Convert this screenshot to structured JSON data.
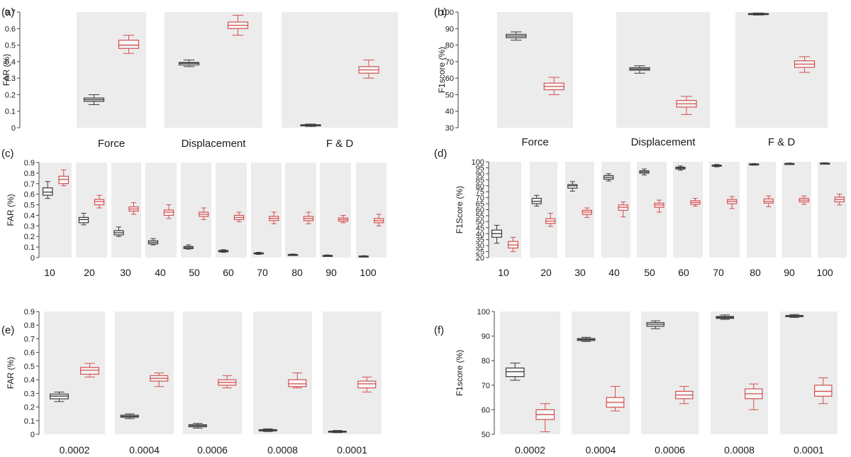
{
  "colors": {
    "panel_bg": "#ececec",
    "group_a": "#3a3a3a",
    "group_b": "#d45050",
    "axis": "#444444"
  },
  "chart_data": [
    {
      "label": "(a)",
      "type": "box",
      "ylabel": "FAR (%)",
      "ylim": [
        0,
        0.7
      ],
      "yticks": [
        "0",
        "0.1",
        "0.2",
        "0.3",
        "0.4",
        "0.5",
        "0.6",
        "0.7"
      ],
      "categories": [
        "Force",
        "Displacement",
        "F & D"
      ],
      "series": [
        {
          "name": "black",
          "boxes": [
            {
              "min": 0.14,
              "q1": 0.16,
              "med": 0.17,
              "q3": 0.18,
              "max": 0.2
            },
            {
              "min": 0.37,
              "q1": 0.38,
              "med": 0.39,
              "q3": 0.395,
              "max": 0.41
            },
            {
              "min": 0.008,
              "q1": 0.012,
              "med": 0.015,
              "q3": 0.018,
              "max": 0.022
            }
          ]
        },
        {
          "name": "red",
          "boxes": [
            {
              "min": 0.45,
              "q1": 0.48,
              "med": 0.5,
              "q3": 0.53,
              "max": 0.56
            },
            {
              "min": 0.56,
              "q1": 0.6,
              "med": 0.62,
              "q3": 0.64,
              "max": 0.68
            },
            {
              "min": 0.3,
              "q1": 0.33,
              "med": 0.35,
              "q3": 0.37,
              "max": 0.41
            }
          ]
        }
      ]
    },
    {
      "label": "(b)",
      "type": "box",
      "ylabel": "F1score (%)",
      "ylim": [
        30,
        100
      ],
      "yticks": [
        "30",
        "40",
        "50",
        "60",
        "70",
        "80",
        "90",
        "100"
      ],
      "categories": [
        "Force",
        "Displacement",
        "F & D"
      ],
      "series": [
        {
          "name": "black",
          "boxes": [
            {
              "min": 83,
              "q1": 84.5,
              "med": 85.5,
              "q3": 86.5,
              "max": 88
            },
            {
              "min": 63,
              "q1": 64.8,
              "med": 65.5,
              "q3": 66.3,
              "max": 67.5
            },
            {
              "min": 98.2,
              "q1": 98.6,
              "med": 98.9,
              "q3": 99.1,
              "max": 99.4
            }
          ]
        },
        {
          "name": "red",
          "boxes": [
            {
              "min": 50,
              "q1": 53,
              "med": 55,
              "q3": 57,
              "max": 60.5
            },
            {
              "min": 38,
              "q1": 42.5,
              "med": 44.5,
              "q3": 46.5,
              "max": 49
            },
            {
              "min": 63.5,
              "q1": 66.5,
              "med": 68.5,
              "q3": 70.5,
              "max": 73
            }
          ]
        }
      ]
    },
    {
      "label": "(c)",
      "type": "box",
      "ylabel": "FAR (%)",
      "ylim": [
        0,
        0.9
      ],
      "yticks": [
        "0",
        "0.1",
        "0.2",
        "0.3",
        "0.4",
        "0.5",
        "0.6",
        "0.7",
        "0.8",
        "0.9"
      ],
      "categories": [
        "10",
        "20",
        "30",
        "40",
        "50",
        "60",
        "70",
        "80",
        "90",
        "100"
      ],
      "series": [
        {
          "name": "black",
          "boxes": [
            {
              "min": 0.56,
              "q1": 0.59,
              "med": 0.62,
              "q3": 0.66,
              "max": 0.72
            },
            {
              "min": 0.31,
              "q1": 0.33,
              "med": 0.36,
              "q3": 0.38,
              "max": 0.42
            },
            {
              "min": 0.2,
              "q1": 0.215,
              "med": 0.235,
              "q3": 0.255,
              "max": 0.29
            },
            {
              "min": 0.12,
              "q1": 0.13,
              "med": 0.145,
              "q3": 0.16,
              "max": 0.18
            },
            {
              "min": 0.08,
              "q1": 0.085,
              "med": 0.095,
              "q3": 0.105,
              "max": 0.12
            },
            {
              "min": 0.05,
              "q1": 0.055,
              "med": 0.06,
              "q3": 0.068,
              "max": 0.075
            },
            {
              "min": 0.03,
              "q1": 0.035,
              "med": 0.04,
              "q3": 0.045,
              "max": 0.05
            },
            {
              "min": 0.02,
              "q1": 0.024,
              "med": 0.027,
              "q3": 0.03,
              "max": 0.034
            },
            {
              "min": 0.01,
              "q1": 0.015,
              "med": 0.018,
              "q3": 0.021,
              "max": 0.025
            },
            {
              "min": 0.006,
              "q1": 0.009,
              "med": 0.012,
              "q3": 0.015,
              "max": 0.018
            }
          ]
        },
        {
          "name": "red",
          "boxes": [
            {
              "min": 0.68,
              "q1": 0.7,
              "med": 0.74,
              "q3": 0.77,
              "max": 0.83
            },
            {
              "min": 0.47,
              "q1": 0.5,
              "med": 0.53,
              "q3": 0.55,
              "max": 0.59
            },
            {
              "min": 0.41,
              "q1": 0.44,
              "med": 0.46,
              "q3": 0.48,
              "max": 0.52
            },
            {
              "min": 0.37,
              "q1": 0.4,
              "med": 0.43,
              "q3": 0.45,
              "max": 0.5
            },
            {
              "min": 0.36,
              "q1": 0.39,
              "med": 0.41,
              "q3": 0.43,
              "max": 0.47
            },
            {
              "min": 0.34,
              "q1": 0.36,
              "med": 0.38,
              "q3": 0.4,
              "max": 0.43
            },
            {
              "min": 0.32,
              "q1": 0.35,
              "med": 0.37,
              "q3": 0.39,
              "max": 0.43
            },
            {
              "min": 0.32,
              "q1": 0.35,
              "med": 0.37,
              "q3": 0.39,
              "max": 0.43
            },
            {
              "min": 0.33,
              "q1": 0.345,
              "med": 0.36,
              "q3": 0.375,
              "max": 0.4
            },
            {
              "min": 0.3,
              "q1": 0.33,
              "med": 0.35,
              "q3": 0.37,
              "max": 0.41
            }
          ]
        }
      ]
    },
    {
      "label": "(d)",
      "type": "box",
      "ylabel": "F1Score (%)",
      "ylim": [
        20,
        100
      ],
      "yticks": [
        "20",
        "25",
        "30",
        "35",
        "40",
        "45",
        "50",
        "55",
        "60",
        "65",
        "70",
        "75",
        "80",
        "85",
        "90",
        "95",
        "100"
      ],
      "categories": [
        "10",
        "20",
        "30",
        "40",
        "50",
        "60",
        "70",
        "80",
        "90",
        "100"
      ],
      "series": [
        {
          "name": "black",
          "boxes": [
            {
              "min": 32,
              "q1": 37,
              "med": 40,
              "q3": 43,
              "max": 47
            },
            {
              "min": 63,
              "q1": 65,
              "med": 67,
              "q3": 69.5,
              "max": 72
            },
            {
              "min": 75.5,
              "q1": 78,
              "med": 80,
              "q3": 81,
              "max": 83.5
            },
            {
              "min": 84,
              "q1": 85.5,
              "med": 87,
              "q3": 88.5,
              "max": 90
            },
            {
              "min": 89,
              "q1": 90.5,
              "med": 91.5,
              "q3": 92.5,
              "max": 94
            },
            {
              "min": 93,
              "q1": 94,
              "med": 94.8,
              "q3": 95.5,
              "max": 96.5
            },
            {
              "min": 95.8,
              "q1": 96.3,
              "med": 96.8,
              "q3": 97.2,
              "max": 97.8
            },
            {
              "min": 97.2,
              "q1": 97.6,
              "med": 97.9,
              "q3": 98.2,
              "max": 98.5
            },
            {
              "min": 97.8,
              "q1": 98.1,
              "med": 98.4,
              "q3": 98.6,
              "max": 98.9
            },
            {
              "min": 98.2,
              "q1": 98.5,
              "med": 98.7,
              "q3": 98.9,
              "max": 99.2
            }
          ]
        },
        {
          "name": "red",
          "boxes": [
            {
              "min": 25,
              "q1": 28,
              "med": 30.5,
              "q3": 33.5,
              "max": 37
            },
            {
              "min": 46,
              "q1": 48.5,
              "med": 50.5,
              "q3": 52.5,
              "max": 57
            },
            {
              "min": 53.5,
              "q1": 56,
              "med": 58,
              "q3": 59.5,
              "max": 61.5
            },
            {
              "min": 54,
              "q1": 59.5,
              "med": 62,
              "q3": 64,
              "max": 66.5
            },
            {
              "min": 58,
              "q1": 62,
              "med": 64,
              "q3": 65.5,
              "max": 68
            },
            {
              "min": 63,
              "q1": 64.5,
              "med": 66,
              "q3": 67.5,
              "max": 69.5
            },
            {
              "min": 61,
              "q1": 65,
              "med": 67,
              "q3": 68.5,
              "max": 71
            },
            {
              "min": 62.5,
              "q1": 65.5,
              "med": 67,
              "q3": 69,
              "max": 71.5
            },
            {
              "min": 64.5,
              "q1": 66.5,
              "med": 68,
              "q3": 69.5,
              "max": 71.5
            },
            {
              "min": 64,
              "q1": 66.5,
              "med": 68.5,
              "q3": 70.5,
              "max": 73
            }
          ]
        }
      ]
    },
    {
      "label": "(e)",
      "type": "box",
      "ylabel": "FAR (%)",
      "ylim": [
        0,
        0.9
      ],
      "yticks": [
        "0",
        "0.1",
        "0.2",
        "0.3",
        "0.4",
        "0.5",
        "0.6",
        "0.7",
        "0.8",
        "0.9"
      ],
      "categories": [
        "0.0002",
        "0.0004",
        "0.0006",
        "0.0008",
        "0.0001"
      ],
      "series": [
        {
          "name": "black",
          "boxes": [
            {
              "min": 0.24,
              "q1": 0.26,
              "med": 0.28,
              "q3": 0.295,
              "max": 0.31
            },
            {
              "min": 0.115,
              "q1": 0.125,
              "med": 0.132,
              "q3": 0.14,
              "max": 0.15
            },
            {
              "min": 0.045,
              "q1": 0.055,
              "med": 0.063,
              "q3": 0.07,
              "max": 0.08
            },
            {
              "min": 0.02,
              "q1": 0.025,
              "med": 0.03,
              "q3": 0.034,
              "max": 0.04
            },
            {
              "min": 0.012,
              "q1": 0.016,
              "med": 0.02,
              "q3": 0.023,
              "max": 0.028
            }
          ]
        },
        {
          "name": "red",
          "boxes": [
            {
              "min": 0.42,
              "q1": 0.44,
              "med": 0.47,
              "q3": 0.49,
              "max": 0.52
            },
            {
              "min": 0.35,
              "q1": 0.39,
              "med": 0.41,
              "q3": 0.43,
              "max": 0.45
            },
            {
              "min": 0.34,
              "q1": 0.36,
              "med": 0.38,
              "q3": 0.4,
              "max": 0.43
            },
            {
              "min": 0.34,
              "q1": 0.35,
              "med": 0.37,
              "q3": 0.4,
              "max": 0.45
            },
            {
              "min": 0.31,
              "q1": 0.34,
              "med": 0.37,
              "q3": 0.39,
              "max": 0.42
            }
          ]
        }
      ]
    },
    {
      "label": "(f)",
      "type": "box",
      "ylabel": "F1score (%)",
      "ylim": [
        50,
        100
      ],
      "yticks": [
        "50",
        "60",
        "70",
        "80",
        "90",
        "100"
      ],
      "categories": [
        "0.0002",
        "0.0004",
        "0.0006",
        "0.0008",
        "0.0001"
      ],
      "series": [
        {
          "name": "black",
          "boxes": [
            {
              "min": 72,
              "q1": 73.5,
              "med": 75.5,
              "q3": 77,
              "max": 79
            },
            {
              "min": 87.8,
              "q1": 88.2,
              "med": 88.6,
              "q3": 89,
              "max": 89.5
            },
            {
              "min": 93,
              "q1": 94,
              "med": 94.8,
              "q3": 95.5,
              "max": 96.2
            },
            {
              "min": 96.8,
              "q1": 97.2,
              "med": 97.6,
              "q3": 98,
              "max": 98.6
            },
            {
              "min": 97.6,
              "q1": 97.9,
              "med": 98.2,
              "q3": 98.4,
              "max": 98.8
            }
          ]
        },
        {
          "name": "red",
          "boxes": [
            {
              "min": 51,
              "q1": 56,
              "med": 58,
              "q3": 60,
              "max": 62.5
            },
            {
              "min": 59.5,
              "q1": 61,
              "med": 63,
              "q3": 65,
              "max": 69.5
            },
            {
              "min": 62.5,
              "q1": 64.5,
              "med": 66,
              "q3": 67.5,
              "max": 69.5
            },
            {
              "min": 60,
              "q1": 64.5,
              "med": 66.5,
              "q3": 68.5,
              "max": 70.5
            },
            {
              "min": 62.5,
              "q1": 65.5,
              "med": 67.5,
              "q3": 70,
              "max": 73
            }
          ]
        }
      ]
    }
  ]
}
